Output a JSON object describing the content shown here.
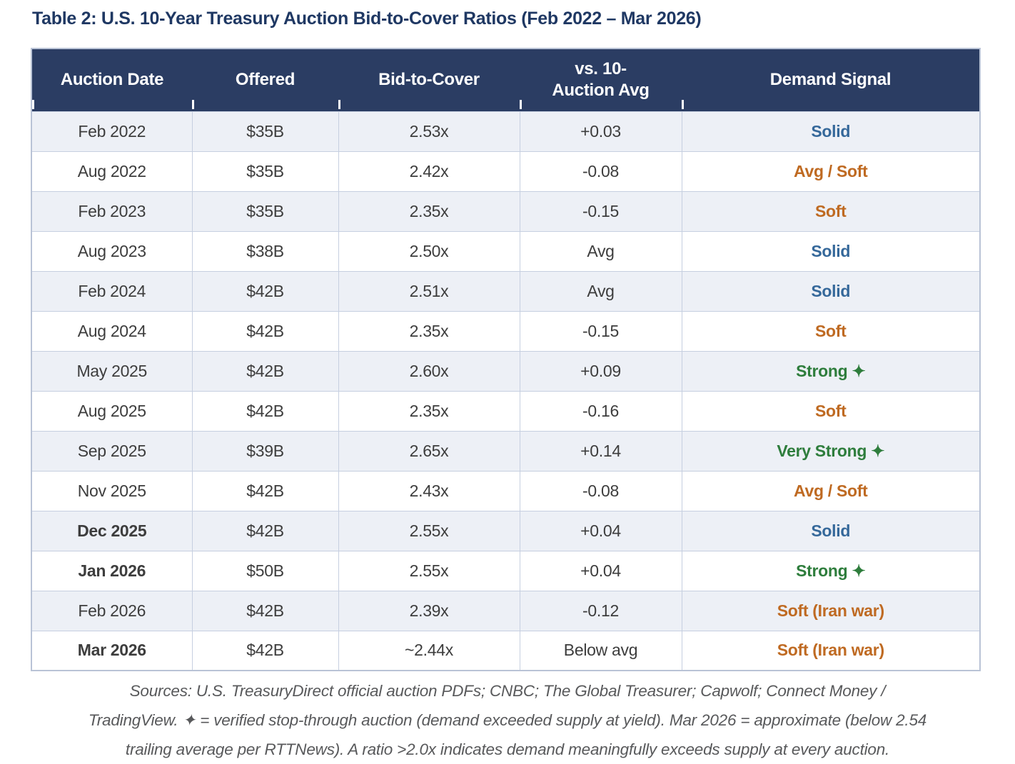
{
  "title": "Table 2: U.S. 10-Year Treasury Auction Bid-to-Cover Ratios (Feb 2022 – Mar 2026)",
  "chart_data": {
    "type": "table",
    "title": "Table 2: U.S. 10-Year Treasury Auction Bid-to-Cover Ratios (Feb 2022 – Mar 2026)",
    "columns": [
      "Auction Date",
      "Offered",
      "Bid-to-Cover",
      "vs. 10-\nAuction Avg",
      "Demand Signal"
    ],
    "rows": [
      {
        "auction_date": "Feb 2022",
        "offered": "$35B",
        "bid_to_cover": "2.53x",
        "vs_10_auction_avg": "+0.03",
        "demand_signal": "Solid",
        "signal_color": "blue",
        "date_bold": false
      },
      {
        "auction_date": "Aug 2022",
        "offered": "$35B",
        "bid_to_cover": "2.42x",
        "vs_10_auction_avg": "-0.08",
        "demand_signal": "Avg / Soft",
        "signal_color": "orange",
        "date_bold": false
      },
      {
        "auction_date": "Feb 2023",
        "offered": "$35B",
        "bid_to_cover": "2.35x",
        "vs_10_auction_avg": "-0.15",
        "demand_signal": "Soft",
        "signal_color": "orange",
        "date_bold": false
      },
      {
        "auction_date": "Aug 2023",
        "offered": "$38B",
        "bid_to_cover": "2.50x",
        "vs_10_auction_avg": "Avg",
        "demand_signal": "Solid",
        "signal_color": "blue",
        "date_bold": false
      },
      {
        "auction_date": "Feb 2024",
        "offered": "$42B",
        "bid_to_cover": "2.51x",
        "vs_10_auction_avg": "Avg",
        "demand_signal": "Solid",
        "signal_color": "blue",
        "date_bold": false
      },
      {
        "auction_date": "Aug 2024",
        "offered": "$42B",
        "bid_to_cover": "2.35x",
        "vs_10_auction_avg": "-0.15",
        "demand_signal": "Soft",
        "signal_color": "orange",
        "date_bold": false
      },
      {
        "auction_date": "May 2025",
        "offered": "$42B",
        "bid_to_cover": "2.60x",
        "vs_10_auction_avg": "+0.09",
        "demand_signal": "Strong ✦",
        "signal_color": "green",
        "date_bold": false
      },
      {
        "auction_date": "Aug 2025",
        "offered": "$42B",
        "bid_to_cover": "2.35x",
        "vs_10_auction_avg": "-0.16",
        "demand_signal": "Soft",
        "signal_color": "orange",
        "date_bold": false
      },
      {
        "auction_date": "Sep 2025",
        "offered": "$39B",
        "bid_to_cover": "2.65x",
        "vs_10_auction_avg": "+0.14",
        "demand_signal": "Very Strong ✦",
        "signal_color": "green",
        "date_bold": false
      },
      {
        "auction_date": "Nov 2025",
        "offered": "$42B",
        "bid_to_cover": "2.43x",
        "vs_10_auction_avg": "-0.08",
        "demand_signal": "Avg / Soft",
        "signal_color": "orange",
        "date_bold": false
      },
      {
        "auction_date": "Dec 2025",
        "offered": "$42B",
        "bid_to_cover": "2.55x",
        "vs_10_auction_avg": "+0.04",
        "demand_signal": "Solid",
        "signal_color": "blue",
        "date_bold": true
      },
      {
        "auction_date": "Jan 2026",
        "offered": "$50B",
        "bid_to_cover": "2.55x",
        "vs_10_auction_avg": "+0.04",
        "demand_signal": "Strong ✦",
        "signal_color": "green",
        "date_bold": true
      },
      {
        "auction_date": "Feb 2026",
        "offered": "$42B",
        "bid_to_cover": "2.39x",
        "vs_10_auction_avg": "-0.12",
        "demand_signal": "Soft (Iran war)",
        "signal_color": "orange",
        "date_bold": false
      },
      {
        "auction_date": "Mar 2026",
        "offered": "$42B",
        "bid_to_cover": "~2.44x",
        "vs_10_auction_avg": "Below avg",
        "demand_signal": "Soft (Iran war)",
        "signal_color": "orange",
        "date_bold": true
      }
    ]
  },
  "colors": {
    "header_bg": "#2b3d63",
    "title_text": "#1f3863",
    "row_alt_bg": "#edf0f6",
    "border": "#c6cfe0",
    "cell_text": "#3d3d3d",
    "footer_text": "#58595b",
    "signal_blue": "#35689a",
    "signal_orange": "#bf6a22",
    "signal_green": "#2e7d3c"
  },
  "footer": {
    "lines": [
      "Sources: U.S. TreasuryDirect official auction PDFs; CNBC; The Global Treasurer; Capwolf; Connect Money /",
      "TradingView. ✦ = verified stop-through auction (demand exceeded supply at yield). Mar 2026 = approximate (below 2.54",
      "trailing average per RTTNews). A ratio >2.0x indicates demand meaningfully exceeds supply at every auction."
    ]
  }
}
